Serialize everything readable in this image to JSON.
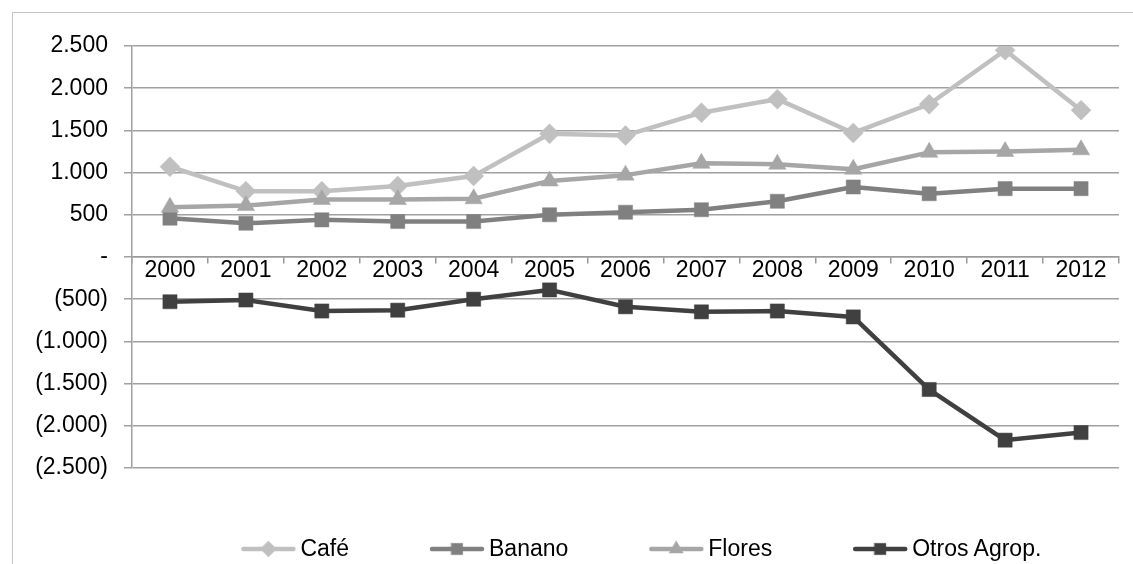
{
  "chart_data": {
    "type": "line",
    "categories": [
      "2000",
      "2001",
      "2002",
      "2003",
      "2004",
      "2005",
      "2006",
      "2007",
      "2008",
      "2009",
      "2010",
      "2011",
      "2012"
    ],
    "series": [
      {
        "name": "Café",
        "color": "#c0c0c0",
        "marker": "diamond",
        "values": [
          1070,
          780,
          780,
          840,
          960,
          1460,
          1440,
          1710,
          1870,
          1470,
          1810,
          2450,
          1740
        ]
      },
      {
        "name": "Banano",
        "color": "#808080",
        "marker": "square",
        "values": [
          460,
          400,
          440,
          420,
          420,
          500,
          530,
          560,
          660,
          830,
          750,
          810,
          810
        ]
      },
      {
        "name": "Flores",
        "color": "#a6a6a6",
        "marker": "triangle",
        "values": [
          590,
          610,
          680,
          680,
          690,
          900,
          970,
          1110,
          1100,
          1040,
          1240,
          1250,
          1270
        ]
      },
      {
        "name": "Otros Agrop.",
        "color": "#404040",
        "marker": "square",
        "values": [
          -530,
          -510,
          -640,
          -630,
          -500,
          -390,
          -590,
          -650,
          -640,
          -710,
          -1570,
          -2170,
          -2080
        ]
      }
    ],
    "ylim": [
      -2500,
      2500
    ],
    "yticks": [
      {
        "value": -2500,
        "label": "(2.500)"
      },
      {
        "value": -2000,
        "label": "(2.000)"
      },
      {
        "value": -1500,
        "label": "(1.500)"
      },
      {
        "value": -1000,
        "label": "(1.000)"
      },
      {
        "value": -500,
        "label": "(500)"
      },
      {
        "value": 0,
        "label": "-"
      },
      500,
      {
        "value": 1000,
        "label": "1.000"
      },
      {
        "value": 1500,
        "label": "1.500"
      },
      {
        "value": 2000,
        "label": "2.000"
      },
      {
        "value": 2500,
        "label": "2.500"
      }
    ],
    "grid": "y",
    "legend": "bottom",
    "line_style": "solid"
  }
}
